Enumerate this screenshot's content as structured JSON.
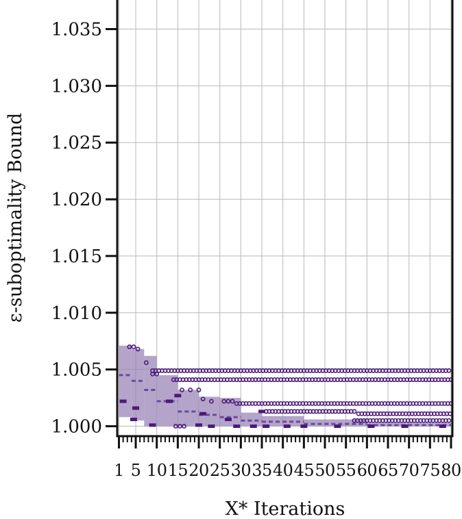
{
  "chart_data": {
    "type": "box",
    "title": "",
    "xlabel": "X* Iterations",
    "ylabel": "ε-suboptimality Bound",
    "xlim": [
      0,
      81
    ],
    "ylim": [
      0.9995,
      1.0372
    ],
    "grid": true,
    "y_ticks": [
      1.0,
      1.005,
      1.01,
      1.015,
      1.02,
      1.025,
      1.03,
      1.035
    ],
    "y_tick_labels": [
      "1.000",
      "1.005",
      "1.010",
      "1.015",
      "1.020",
      "1.025",
      "1.030",
      "1.035"
    ],
    "x_ticks": [
      1,
      5,
      10,
      15,
      20,
      25,
      30,
      35,
      40,
      45,
      50,
      55,
      60,
      65,
      70,
      75,
      80
    ],
    "x_tick_labels": [
      "1",
      "5",
      "10",
      "15",
      "20",
      "25",
      "30",
      "35",
      "40",
      "45",
      "50",
      "55",
      "60",
      "65",
      "70",
      "75",
      "80"
    ],
    "box_color": "#9b86b8",
    "median_color": "#6a4a9c",
    "outlier_color": "#4a1a78",
    "boxes": [
      {
        "start": 1,
        "end": 4,
        "q1": 1.0008,
        "q3": 1.0071,
        "median": 1.0045
      },
      {
        "start": 4,
        "end": 7,
        "q1": 1.0005,
        "q3": 1.0068,
        "median": 1.004
      },
      {
        "start": 7,
        "end": 10,
        "q1": 1.0,
        "q3": 1.0062,
        "median": 1.0032
      },
      {
        "start": 10,
        "end": 15,
        "q1": 1.0,
        "q3": 1.0045,
        "median": 1.0022
      },
      {
        "start": 15,
        "end": 20,
        "q1": 1.0,
        "q3": 1.0032,
        "median": 1.0013
      },
      {
        "start": 20,
        "end": 25,
        "q1": 1.0,
        "q3": 1.0026,
        "median": 1.001
      },
      {
        "start": 25,
        "end": 30,
        "q1": 1.0,
        "q3": 1.0025,
        "median": 1.0008
      },
      {
        "start": 30,
        "end": 35,
        "q1": 1.0,
        "q3": 1.0012,
        "median": 1.0005
      },
      {
        "start": 35,
        "end": 45,
        "q1": 1.0,
        "q3": 1.0009,
        "median": 1.0004
      },
      {
        "start": 45,
        "end": 60,
        "q1": 1.0,
        "q3": 1.0006,
        "median": 1.0002
      },
      {
        "start": 60,
        "end": 80,
        "q1": 1.0,
        "q3": 1.0003,
        "median": 1.0001
      }
    ],
    "outlier_rows": [
      {
        "y": 1.0049,
        "from": 9,
        "to": 80,
        "step": 0.75
      },
      {
        "y": 1.0041,
        "from": 14,
        "to": 80,
        "step": 0.75
      },
      {
        "y": 1.002,
        "from": 29,
        "to": 80,
        "step": 0.75
      },
      {
        "y": 1.0013,
        "from": 36,
        "to": 57,
        "step": 0.75
      },
      {
        "y": 1.0011,
        "from": 58,
        "to": 80,
        "step": 0.75
      },
      {
        "y": 1.0005,
        "from": 57,
        "to": 80,
        "step": 0.75
      }
    ],
    "extra_outliers": [
      {
        "x": 3.5,
        "y": 1.007
      },
      {
        "x": 4.5,
        "y": 1.007
      },
      {
        "x": 5.5,
        "y": 1.0068
      },
      {
        "x": 7.5,
        "y": 1.0056
      },
      {
        "x": 9,
        "y": 1.0046
      },
      {
        "x": 10,
        "y": 1.0046
      },
      {
        "x": 16,
        "y": 1.0032
      },
      {
        "x": 18,
        "y": 1.0032
      },
      {
        "x": 20,
        "y": 1.0032
      },
      {
        "x": 21,
        "y": 1.0024
      },
      {
        "x": 23,
        "y": 1.0022
      },
      {
        "x": 26,
        "y": 1.0022
      },
      {
        "x": 27,
        "y": 1.0022
      },
      {
        "x": 28,
        "y": 1.0022
      },
      {
        "x": 14.5,
        "y": 1.0
      },
      {
        "x": 15.5,
        "y": 1.0
      },
      {
        "x": 16.5,
        "y": 1.0
      }
    ],
    "dash_marks": [
      {
        "x": 4.5,
        "y": 1.0006
      },
      {
        "x": 9,
        "y": 1.0001
      },
      {
        "x": 13,
        "y": 1.0022
      },
      {
        "x": 15,
        "y": 1.0027
      },
      {
        "x": 20,
        "y": 1.0001
      },
      {
        "x": 21,
        "y": 1.0011
      },
      {
        "x": 23,
        "y": 1.0
      },
      {
        "x": 29,
        "y": 1.0
      },
      {
        "x": 33,
        "y": 1.0
      },
      {
        "x": 36,
        "y": 1.0
      },
      {
        "x": 41,
        "y": 1.0
      },
      {
        "x": 45,
        "y": 1.0
      },
      {
        "x": 53,
        "y": 1.0
      },
      {
        "x": 61,
        "y": 1.0
      },
      {
        "x": 69,
        "y": 1.0
      },
      {
        "x": 78,
        "y": 1.0
      },
      {
        "x": 2,
        "y": 1.0022
      },
      {
        "x": 5,
        "y": 1.0016
      },
      {
        "x": 27,
        "y": 1.0006
      },
      {
        "x": 35,
        "y": 1.0013
      }
    ]
  }
}
